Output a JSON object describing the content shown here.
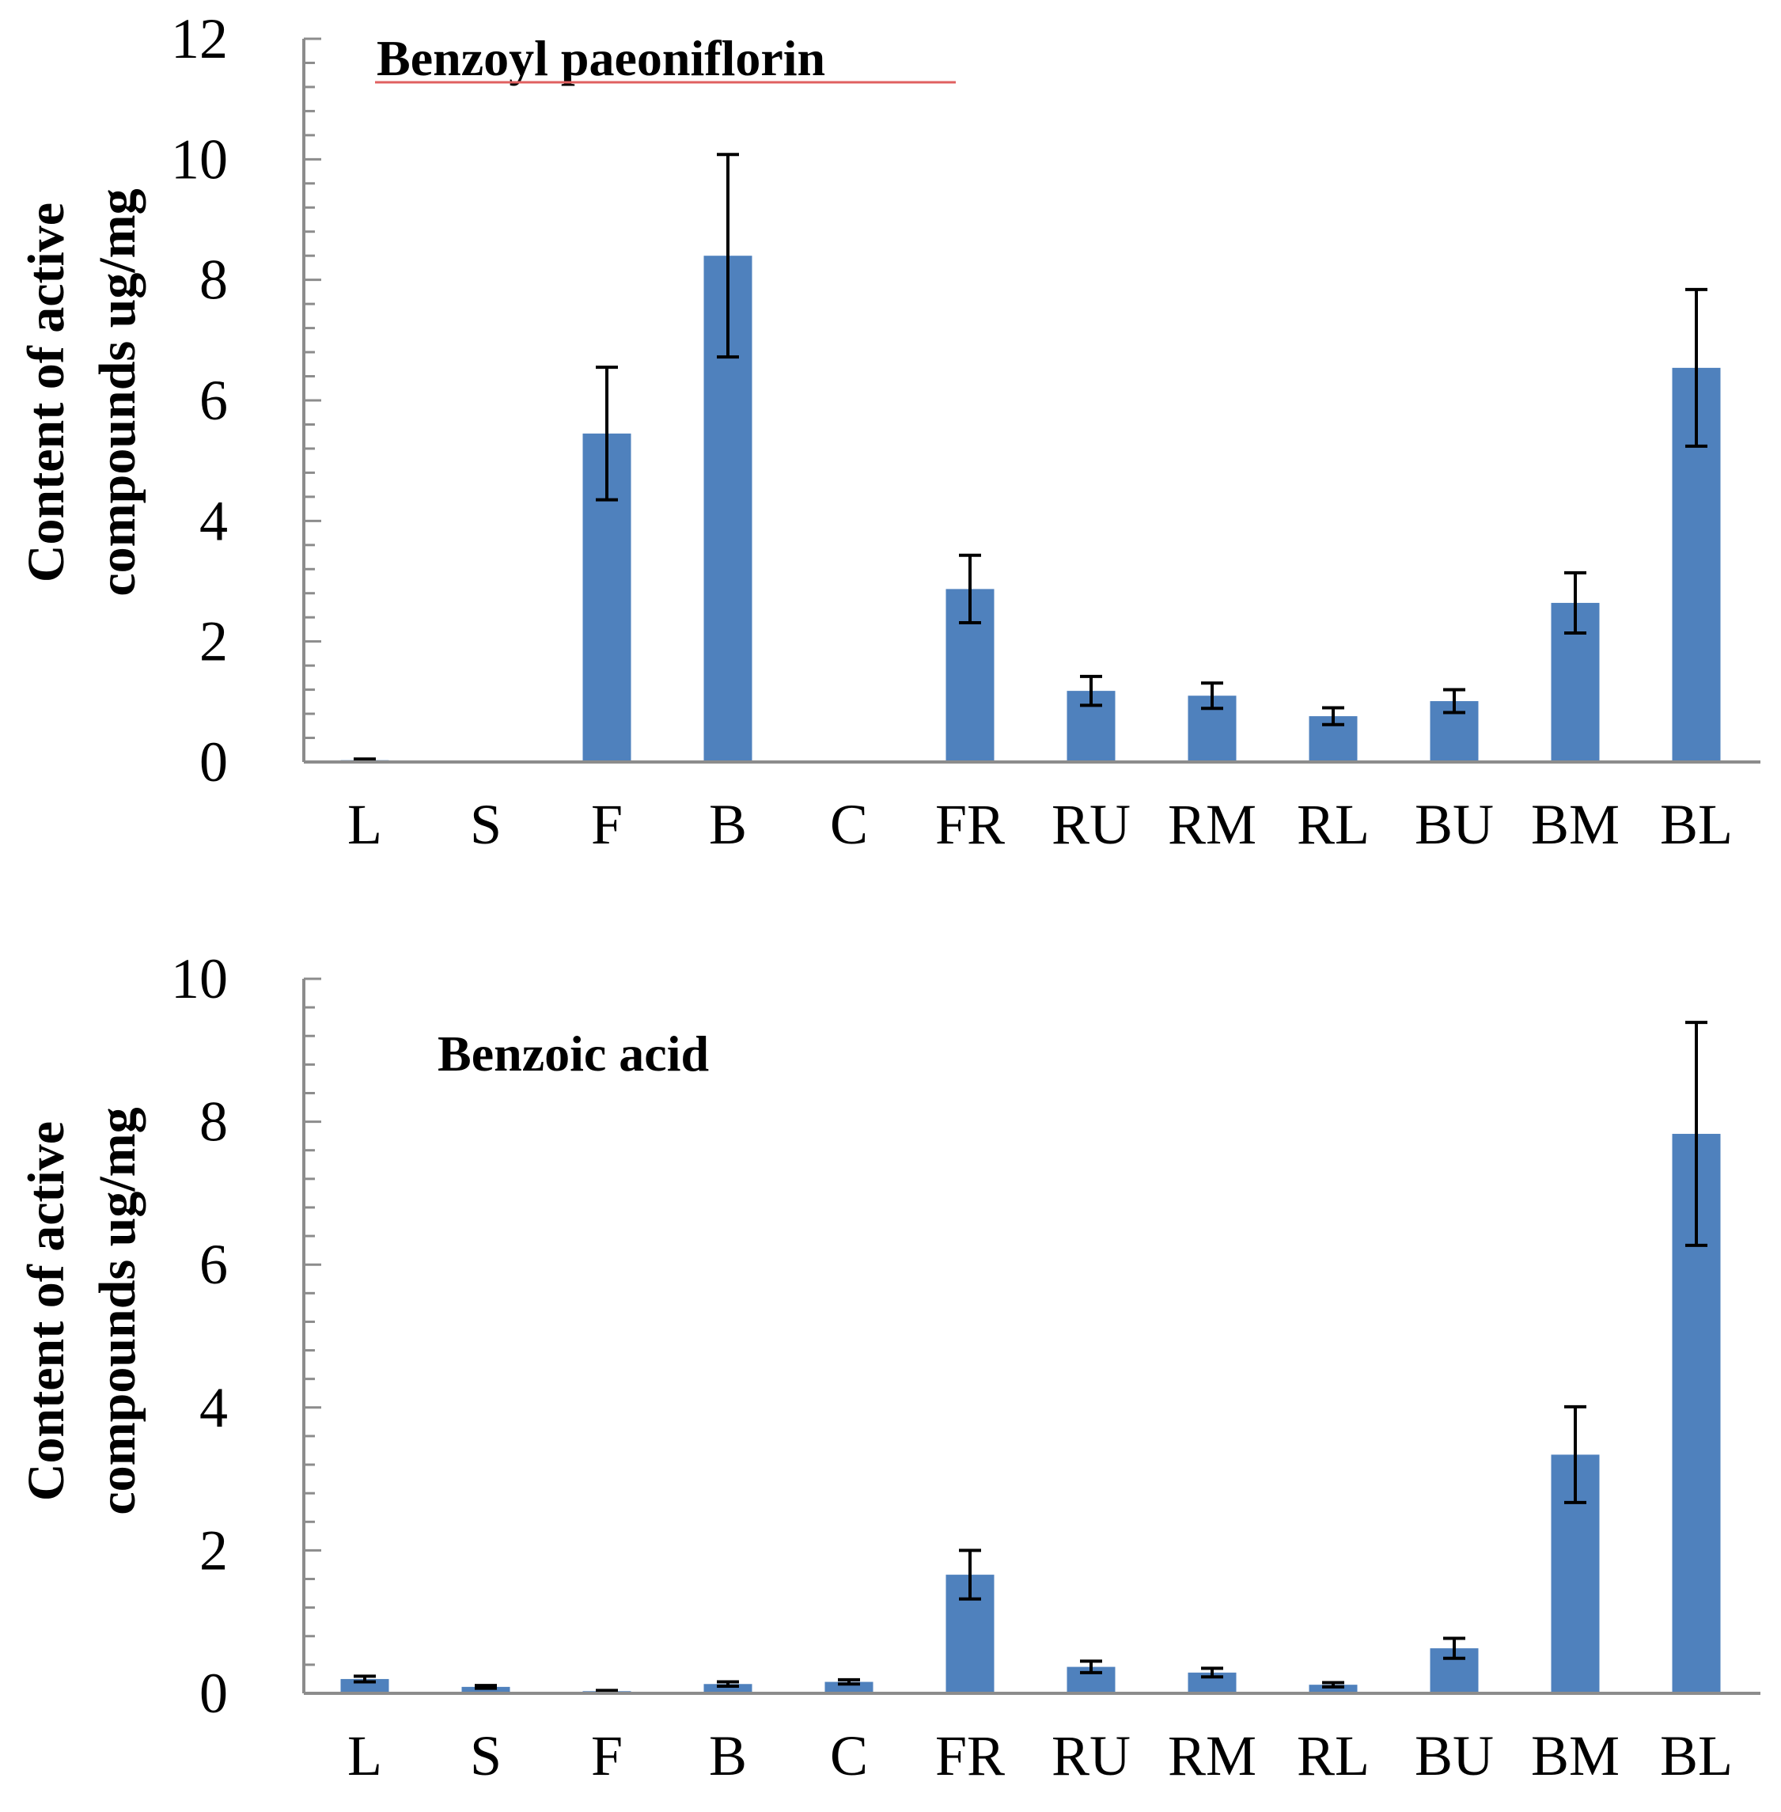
{
  "chart_data": [
    {
      "type": "bar",
      "title": "Benzoyl paeoniflorin",
      "ylabel_line1": "Content of active",
      "ylabel_line2": "compounds ug/mg",
      "xlabel": "",
      "ylim": [
        0,
        12
      ],
      "yticks": [
        "0",
        "2",
        "4",
        "6",
        "8",
        "10",
        "12"
      ],
      "categories": [
        "L",
        "S",
        "F",
        "B",
        "C",
        "FR",
        "RU",
        "RM",
        "RL",
        "BU",
        "BM",
        "BL"
      ],
      "values": [
        0.03,
        0,
        5.45,
        8.4,
        0,
        2.87,
        1.18,
        1.1,
        0.76,
        1.01,
        2.64,
        6.54
      ],
      "errors": [
        0.02,
        0,
        1.1,
        1.68,
        0,
        0.56,
        0.24,
        0.21,
        0.14,
        0.19,
        0.5,
        1.3
      ],
      "bar_color": "#4f81bd",
      "title_underline_color": "#e06060"
    },
    {
      "type": "bar",
      "title": "Benzoic acid",
      "ylabel_line1": "Content of active",
      "ylabel_line2": "compounds ug/mg",
      "xlabel": "",
      "ylim": [
        0,
        10
      ],
      "yticks": [
        "0",
        "2",
        "4",
        "6",
        "8",
        "10"
      ],
      "categories": [
        "L",
        "S",
        "F",
        "B",
        "C",
        "FR",
        "RU",
        "RM",
        "RL",
        "BU",
        "BM",
        "BL"
      ],
      "values": [
        0.2,
        0.09,
        0.03,
        0.13,
        0.16,
        1.66,
        0.37,
        0.29,
        0.12,
        0.63,
        3.34,
        7.83
      ],
      "errors": [
        0.04,
        0.02,
        0.01,
        0.03,
        0.03,
        0.34,
        0.08,
        0.06,
        0.03,
        0.14,
        0.67,
        1.56
      ],
      "bar_color": "#4f81bd"
    }
  ]
}
